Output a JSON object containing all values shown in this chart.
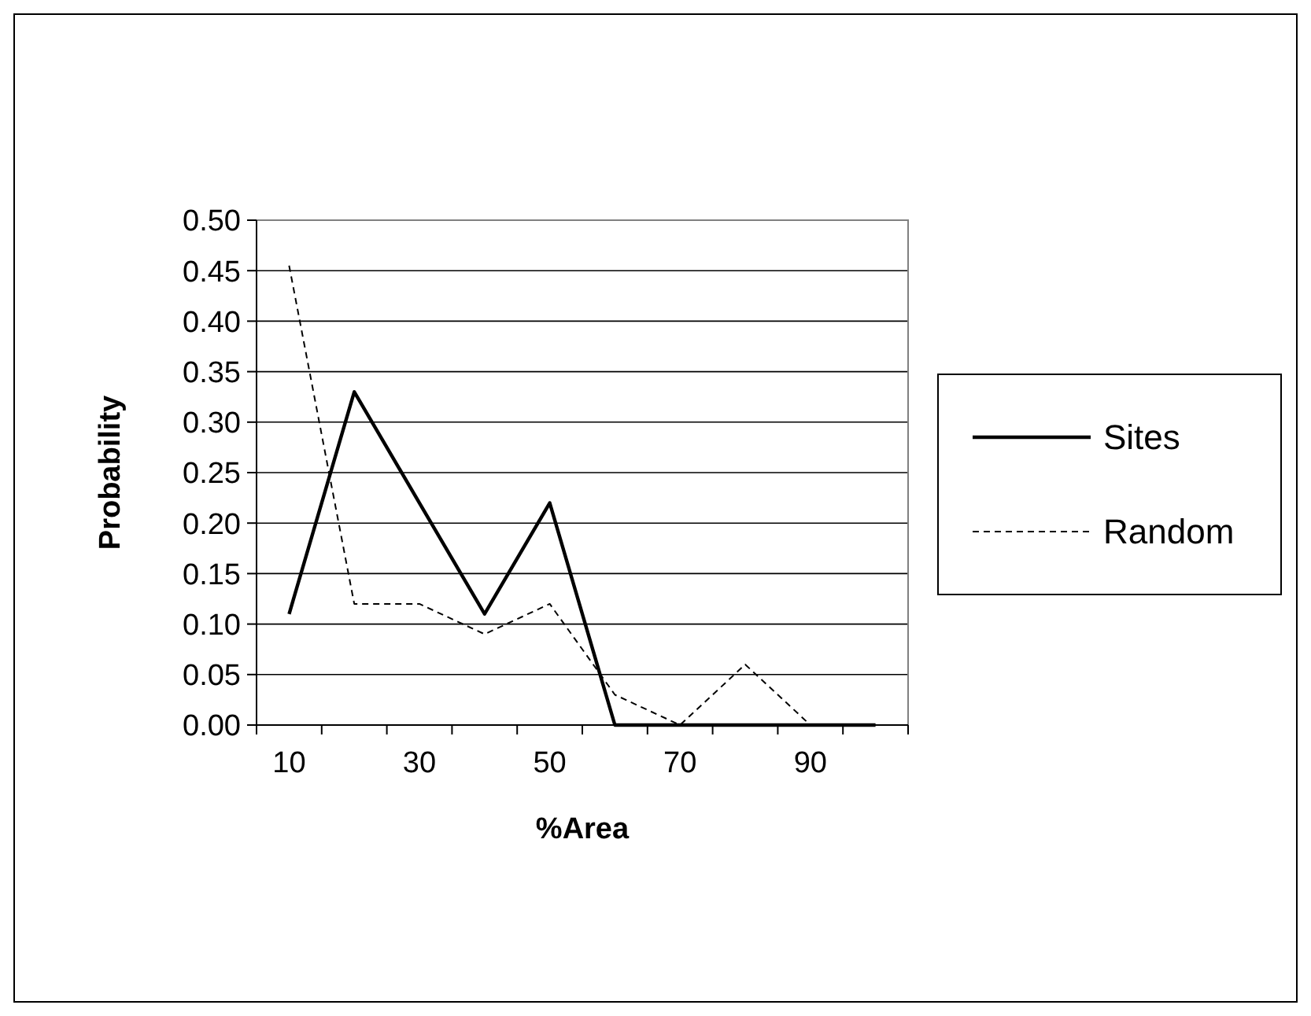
{
  "chart_data": {
    "type": "line",
    "xlabel": "%Area",
    "ylabel": "Probability",
    "categories": [
      "10",
      null,
      "30",
      null,
      "50",
      null,
      "70",
      null,
      "90",
      null
    ],
    "series": [
      {
        "name": "Sites",
        "color": "#000000",
        "line_style": "solid",
        "values": [
          0.11,
          0.33,
          0.22,
          0.11,
          0.22,
          0,
          0,
          0,
          0,
          0
        ]
      },
      {
        "name": "Random",
        "color": "#000000",
        "line_style": "dashed",
        "values": [
          0.455,
          0.12,
          0.12,
          0.09,
          0.12,
          0.03,
          0,
          0.06,
          0,
          0
        ]
      }
    ],
    "ylim": [
      0,
      0.5
    ],
    "yticks": [
      {
        "value": 0,
        "label": "0.00"
      },
      {
        "value": 0.05,
        "label": "0.05"
      },
      {
        "value": 0.1,
        "label": "0.10"
      },
      {
        "value": 0.15,
        "label": "0.15"
      },
      {
        "value": 0.2,
        "label": "0.20"
      },
      {
        "value": 0.25,
        "label": "0.25"
      },
      {
        "value": 0.3,
        "label": "0.30"
      },
      {
        "value": 0.35,
        "label": "0.35"
      },
      {
        "value": 0.4,
        "label": "0.40"
      },
      {
        "value": 0.45,
        "label": "0.45"
      },
      {
        "value": 0.5,
        "label": "0.50"
      }
    ],
    "grid": "y",
    "legend": "right",
    "marker": "none"
  }
}
